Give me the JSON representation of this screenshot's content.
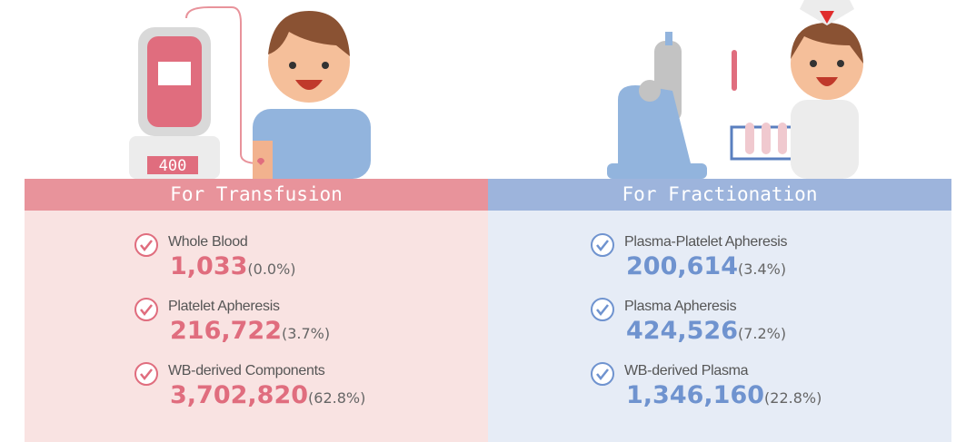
{
  "illustration": {
    "scale_label": "400"
  },
  "panels": [
    {
      "title": "For Transfusion",
      "items": [
        {
          "name": "Whole Blood",
          "value": "1,033",
          "percent": "(0.0%)"
        },
        {
          "name": "Platelet Apheresis",
          "value": "216,722",
          "percent": "(3.7%)"
        },
        {
          "name": "WB-derived Components",
          "value": "3,702,820",
          "percent": "(62.8%)"
        }
      ]
    },
    {
      "title": "For Fractionation",
      "items": [
        {
          "name": "Plasma-Platelet Apheresis",
          "value": "200,614",
          "percent": "(3.4%)"
        },
        {
          "name": "Plasma Apheresis",
          "value": "424,526",
          "percent": "(7.2%)"
        },
        {
          "name": "WB-derived Plasma",
          "value": "1,346,160",
          "percent": "(22.8%)"
        }
      ]
    }
  ]
}
